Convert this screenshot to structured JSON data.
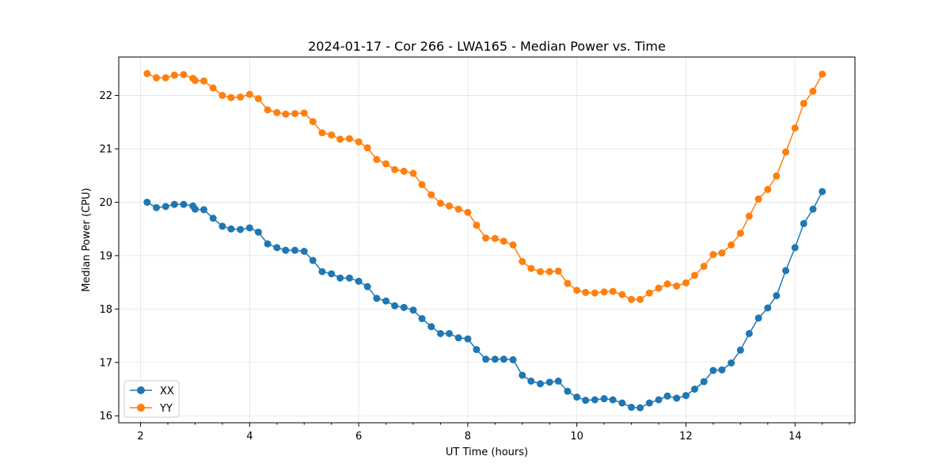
{
  "chart_data": {
    "type": "line",
    "title": "2024-01-17 - Cor 266 - LWA165 - Median Power vs. Time",
    "xlabel": "UT Time (hours)",
    "ylabel": "Median Power (CPU)",
    "xlim": [
      1.6,
      15.1
    ],
    "ylim": [
      15.87,
      22.72
    ],
    "xticks": [
      2,
      4,
      6,
      8,
      10,
      12,
      14
    ],
    "yticks": [
      16,
      17,
      18,
      19,
      20,
      21,
      22
    ],
    "grid": true,
    "legend_position": "lower-left",
    "x": [
      2.12,
      2.29,
      2.46,
      2.62,
      2.79,
      2.96,
      3.0,
      3.16,
      3.33,
      3.5,
      3.66,
      3.83,
      4.0,
      4.16,
      4.33,
      4.5,
      4.66,
      4.83,
      5.0,
      5.16,
      5.33,
      5.5,
      5.66,
      5.83,
      6.0,
      6.16,
      6.33,
      6.5,
      6.66,
      6.83,
      7.0,
      7.16,
      7.33,
      7.5,
      7.66,
      7.83,
      8.0,
      8.16,
      8.33,
      8.5,
      8.66,
      8.83,
      9.0,
      9.16,
      9.33,
      9.5,
      9.66,
      9.83,
      10.0,
      10.16,
      10.33,
      10.5,
      10.66,
      10.83,
      11.0,
      11.16,
      11.33,
      11.5,
      11.66,
      11.83,
      12.0,
      12.16,
      12.33,
      12.5,
      12.66,
      12.83,
      13.0,
      13.16,
      13.33,
      13.5,
      13.66,
      13.83,
      14.0,
      14.16,
      14.33,
      14.5
    ],
    "series": [
      {
        "name": "XX",
        "color": "#1f77b4",
        "values": [
          20.0,
          19.9,
          19.92,
          19.96,
          19.96,
          19.93,
          19.87,
          19.86,
          19.7,
          19.55,
          19.5,
          19.49,
          19.52,
          19.44,
          19.22,
          19.15,
          19.1,
          19.1,
          19.08,
          18.91,
          18.7,
          18.66,
          18.58,
          18.58,
          18.52,
          18.42,
          18.2,
          18.15,
          18.06,
          18.03,
          17.98,
          17.82,
          17.67,
          17.54,
          17.54,
          17.46,
          17.44,
          17.24,
          17.06,
          17.06,
          17.06,
          17.05,
          16.76,
          16.65,
          16.6,
          16.63,
          16.65,
          16.46,
          16.35,
          16.29,
          16.3,
          16.32,
          16.3,
          16.24,
          16.16,
          16.15,
          16.24,
          16.3,
          16.37,
          16.33,
          16.38,
          16.5,
          16.64,
          16.85,
          16.86,
          16.99,
          17.23,
          17.54,
          17.83,
          18.02,
          18.25,
          18.72,
          19.15,
          19.6,
          19.87,
          20.2
        ]
      },
      {
        "name": "YY",
        "color": "#ff7f0e",
        "values": [
          22.41,
          22.33,
          22.33,
          22.38,
          22.39,
          22.32,
          22.28,
          22.27,
          22.14,
          22.0,
          21.96,
          21.97,
          22.02,
          21.94,
          21.73,
          21.68,
          21.65,
          21.66,
          21.67,
          21.51,
          21.3,
          21.26,
          21.18,
          21.19,
          21.13,
          21.02,
          20.8,
          20.72,
          20.61,
          20.58,
          20.54,
          20.33,
          20.14,
          19.98,
          19.93,
          19.87,
          19.81,
          19.57,
          19.33,
          19.32,
          19.27,
          19.2,
          18.89,
          18.76,
          18.7,
          18.7,
          18.71,
          18.48,
          18.35,
          18.31,
          18.3,
          18.32,
          18.33,
          18.27,
          18.18,
          18.18,
          18.3,
          18.39,
          18.47,
          18.43,
          18.49,
          18.63,
          18.8,
          19.02,
          19.05,
          19.2,
          19.42,
          19.74,
          20.06,
          20.24,
          20.49,
          20.94,
          21.39,
          21.85,
          22.08,
          22.4
        ]
      }
    ]
  }
}
